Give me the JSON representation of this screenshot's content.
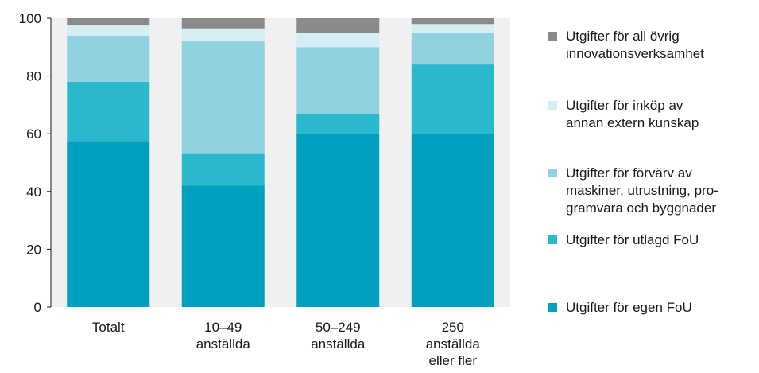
{
  "chart_data": {
    "type": "bar",
    "stacked": true,
    "categories": [
      "Totalt",
      "10–49 anställda",
      "50–249 anställda",
      "250 anställda eller fler"
    ],
    "category_lines": [
      [
        "Totalt"
      ],
      [
        "10–49",
        "anställda"
      ],
      [
        "50–249",
        "anställda"
      ],
      [
        "250",
        "anställda",
        "eller fler"
      ]
    ],
    "series": [
      {
        "name": "Utgifter för egen FoU",
        "color": "#00a0be",
        "values": [
          57.5,
          42,
          60,
          60
        ]
      },
      {
        "name": "Utgifter för utlagd FoU",
        "color": "#2ab8cc",
        "values": [
          20.5,
          11,
          7,
          24
        ]
      },
      {
        "name": "Utgifter för förvärv av maskiner, utrustning, programvara och byggnader",
        "color": "#8fd3e0",
        "values": [
          16,
          39,
          23,
          11
        ]
      },
      {
        "name": "Utgifter för inköp av annan extern kunskap",
        "color": "#d4eef3",
        "values": [
          3.5,
          4.5,
          5,
          3
        ]
      },
      {
        "name": "Utgifter för all övrig innovationsverksamhet",
        "color": "#8a8a8a",
        "values": [
          2.5,
          3.5,
          5,
          2
        ]
      }
    ],
    "ylim": [
      0,
      100
    ],
    "yticks": [
      0,
      20,
      40,
      60,
      80,
      100
    ],
    "xlabel": "",
    "ylabel": "",
    "grid": false,
    "legend_position": "right",
    "plot_background": "#f0f0f0"
  },
  "legend": {
    "items": [
      {
        "lines": [
          "Utgifter för all övrig",
          "innovationsverksamhet"
        ],
        "color": "#8a8a8a"
      },
      {
        "lines": [
          "Utgifter för inköp av",
          "annan extern kunskap"
        ],
        "color": "#d4eef3"
      },
      {
        "lines": [
          "Utgifter för förvärv av",
          "maskiner, utrustning, pro-",
          "gramvara och byggnader"
        ],
        "color": "#8fd3e0"
      },
      {
        "lines": [
          "Utgifter för utlagd FoU"
        ],
        "color": "#2ab8cc"
      },
      {
        "lines": [
          "Utgifter för egen FoU"
        ],
        "color": "#00a0be"
      }
    ]
  }
}
